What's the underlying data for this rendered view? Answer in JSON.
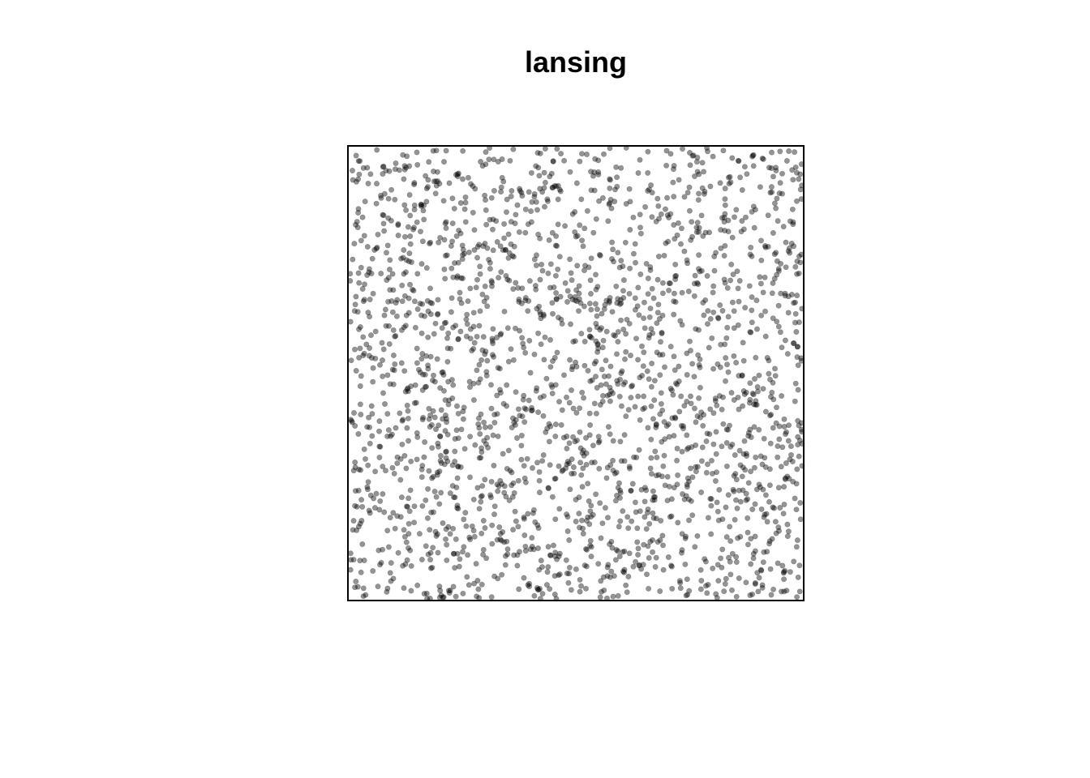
{
  "title": "lansing",
  "colors": {
    "point_fill": "#000000",
    "point_opacity": 0.42,
    "frame": "#000000",
    "background": "#ffffff"
  },
  "chart_data": {
    "type": "scatter",
    "title": "lansing",
    "xlabel": "",
    "ylabel": "",
    "xlim": [
      0,
      1
    ],
    "ylim": [
      0,
      1
    ],
    "axes_shown": false,
    "grid": false,
    "legend": "none",
    "n_points": 2251,
    "points_sample": [
      [
        0.02,
        0.97
      ],
      [
        0.06,
        0.92
      ],
      [
        0.11,
        0.95
      ],
      [
        0.17,
        0.88
      ],
      [
        0.25,
        0.93
      ],
      [
        0.31,
        0.84
      ],
      [
        0.38,
        0.9
      ],
      [
        0.45,
        0.97
      ],
      [
        0.55,
        0.94
      ],
      [
        0.62,
        0.88
      ],
      [
        0.7,
        0.96
      ],
      [
        0.78,
        0.91
      ],
      [
        0.86,
        0.97
      ],
      [
        0.93,
        0.9
      ],
      [
        0.98,
        0.83
      ],
      [
        0.04,
        0.78
      ],
      [
        0.12,
        0.72
      ],
      [
        0.2,
        0.8
      ],
      [
        0.28,
        0.69
      ],
      [
        0.36,
        0.76
      ],
      [
        0.46,
        0.73
      ],
      [
        0.58,
        0.79
      ],
      [
        0.66,
        0.71
      ],
      [
        0.74,
        0.77
      ],
      [
        0.83,
        0.7
      ],
      [
        0.91,
        0.75
      ],
      [
        0.97,
        0.67
      ],
      [
        0.03,
        0.58
      ],
      [
        0.1,
        0.52
      ],
      [
        0.19,
        0.61
      ],
      [
        0.27,
        0.55
      ],
      [
        0.35,
        0.6
      ],
      [
        0.43,
        0.53
      ],
      [
        0.52,
        0.57
      ],
      [
        0.6,
        0.5
      ],
      [
        0.69,
        0.59
      ],
      [
        0.77,
        0.54
      ],
      [
        0.85,
        0.6
      ],
      [
        0.94,
        0.51
      ],
      [
        0.05,
        0.41
      ],
      [
        0.13,
        0.35
      ],
      [
        0.22,
        0.44
      ],
      [
        0.3,
        0.38
      ],
      [
        0.39,
        0.42
      ],
      [
        0.48,
        0.36
      ],
      [
        0.56,
        0.45
      ],
      [
        0.64,
        0.33
      ],
      [
        0.72,
        0.4
      ],
      [
        0.81,
        0.37
      ],
      [
        0.9,
        0.43
      ],
      [
        0.97,
        0.35
      ],
      [
        0.02,
        0.24
      ],
      [
        0.09,
        0.18
      ],
      [
        0.16,
        0.27
      ],
      [
        0.24,
        0.2
      ],
      [
        0.33,
        0.25
      ],
      [
        0.41,
        0.17
      ],
      [
        0.5,
        0.22
      ],
      [
        0.59,
        0.28
      ],
      [
        0.67,
        0.19
      ],
      [
        0.75,
        0.26
      ],
      [
        0.84,
        0.16
      ],
      [
        0.92,
        0.23
      ],
      [
        0.99,
        0.13
      ],
      [
        0.07,
        0.08
      ],
      [
        0.15,
        0.03
      ],
      [
        0.23,
        0.1
      ],
      [
        0.32,
        0.05
      ],
      [
        0.4,
        0.11
      ],
      [
        0.49,
        0.02
      ],
      [
        0.57,
        0.07
      ],
      [
        0.65,
        0.12
      ],
      [
        0.73,
        0.04
      ],
      [
        0.82,
        0.09
      ],
      [
        0.89,
        0.01
      ],
      [
        0.96,
        0.06
      ]
    ]
  }
}
